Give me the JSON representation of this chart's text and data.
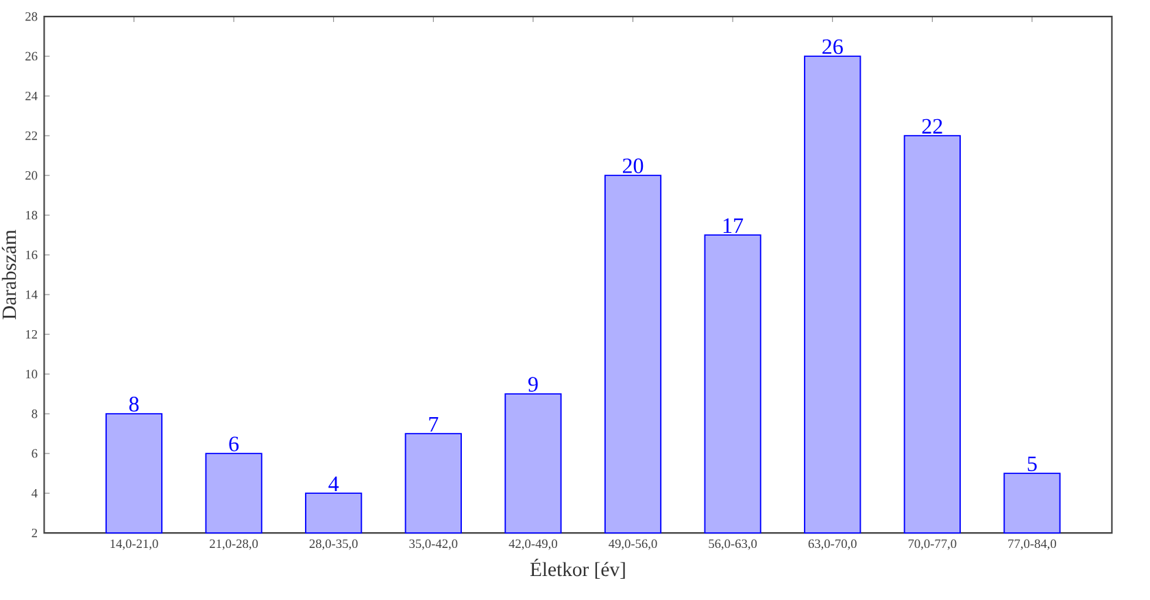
{
  "chart_data": {
    "type": "bar",
    "xlabel": "Életkor [év]",
    "ylabel": "Darabszám",
    "categories": [
      "14,0-21,0",
      "21,0-28,0",
      "28,0-35,0",
      "35,0-42,0",
      "42,0-49,0",
      "49,0-56,0",
      "56,0-63,0",
      "63,0-70,0",
      "70,0-77,0",
      "77,0-84,0"
    ],
    "values": [
      8,
      6,
      4,
      7,
      9,
      20,
      17,
      26,
      22,
      5
    ],
    "color": "#b0b0ff",
    "ylim": [
      2,
      28
    ],
    "yticks": [
      2,
      4,
      6,
      8,
      10,
      12,
      14,
      16,
      18,
      20,
      22,
      24,
      26,
      28
    ],
    "data_labels": true
  }
}
